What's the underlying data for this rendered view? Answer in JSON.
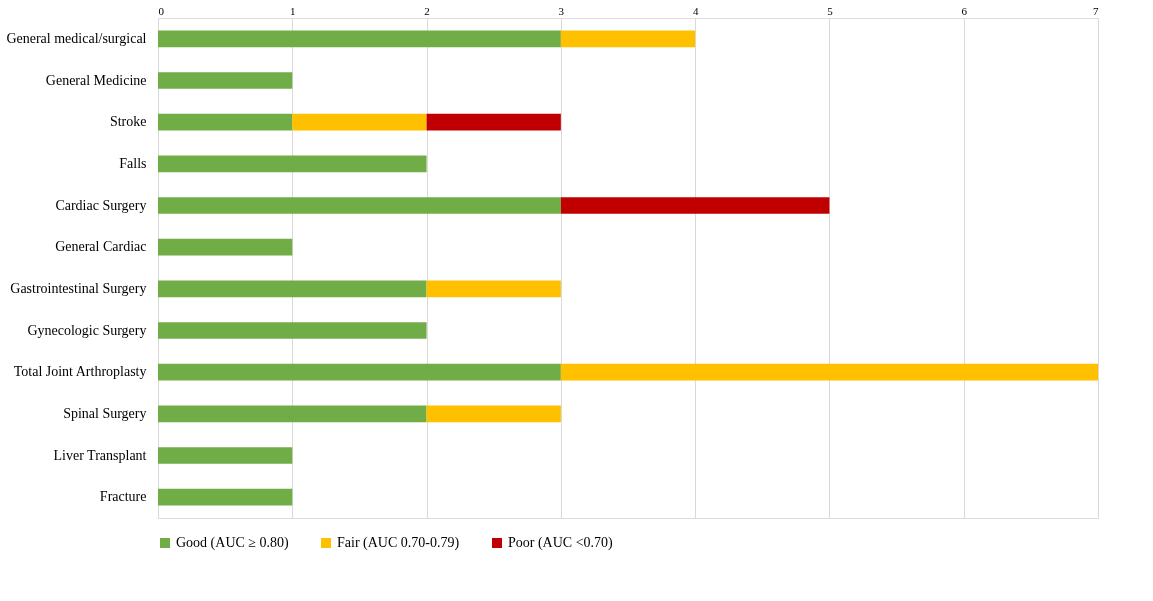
{
  "chart_data": {
    "type": "bar",
    "orientation": "horizontal",
    "stacked": true,
    "categories": [
      "General medical/surgical",
      "General Medicine",
      "Stroke",
      "Falls",
      "Cardiac Surgery",
      "General Cardiac",
      "Gastrointestinal Surgery",
      "Gynecologic Surgery",
      "Total Joint Arthroplasty",
      "Spinal Surgery",
      "Liver Transplant",
      "Fracture"
    ],
    "series": [
      {
        "name": "Good (AUC ≥ 0.80)",
        "color": "#70ad47",
        "values": [
          3,
          1,
          1,
          2,
          3,
          1,
          2,
          2,
          3,
          2,
          1,
          1
        ]
      },
      {
        "name": "Fair (AUC 0.70-0.79)",
        "color": "#ffc000",
        "values": [
          1,
          null,
          1,
          null,
          null,
          null,
          1,
          null,
          4,
          1,
          null,
          null
        ]
      },
      {
        "name": "Poor (AUC <0.70)",
        "color": "#c00000",
        "values": [
          null,
          null,
          1,
          null,
          2,
          null,
          null,
          null,
          null,
          null,
          null,
          null
        ]
      }
    ],
    "xlim": [
      0,
      7
    ],
    "xticks": [
      0,
      1,
      2,
      3,
      4,
      5,
      6,
      7
    ],
    "grid": "x",
    "legend": "bottom"
  }
}
